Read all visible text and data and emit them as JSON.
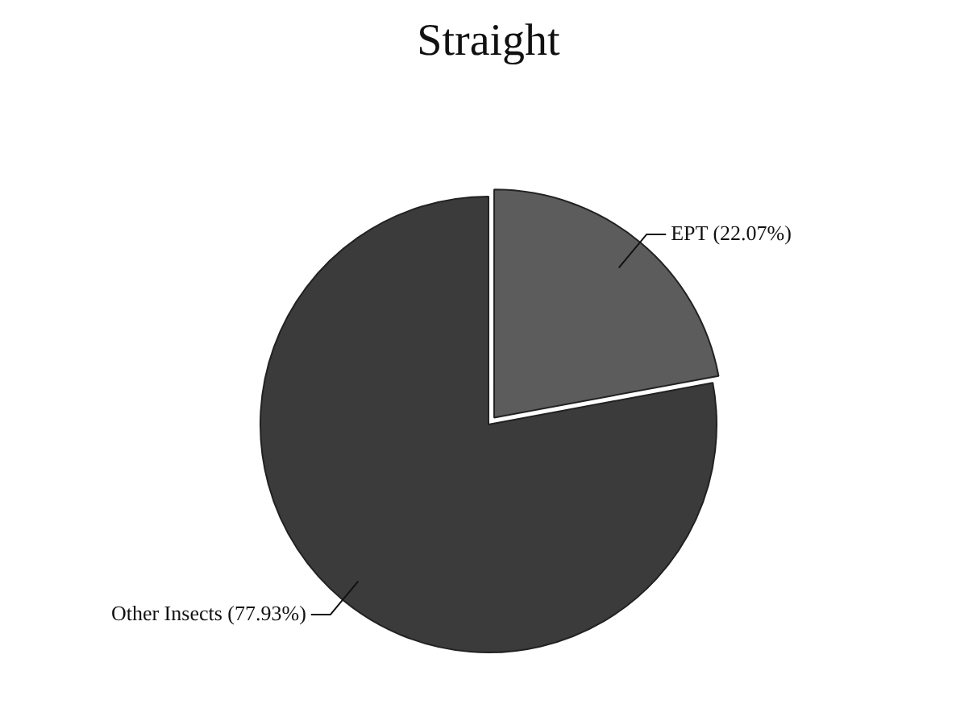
{
  "chart_data": {
    "type": "pie",
    "title": "Straight",
    "categories": [
      "EPT (22.07%)",
      "Other Insects (77.93%)"
    ],
    "values": [
      22.07,
      77.93
    ],
    "colors": [
      "#5c5c5c",
      "#3b3b3b"
    ],
    "legend": false
  }
}
